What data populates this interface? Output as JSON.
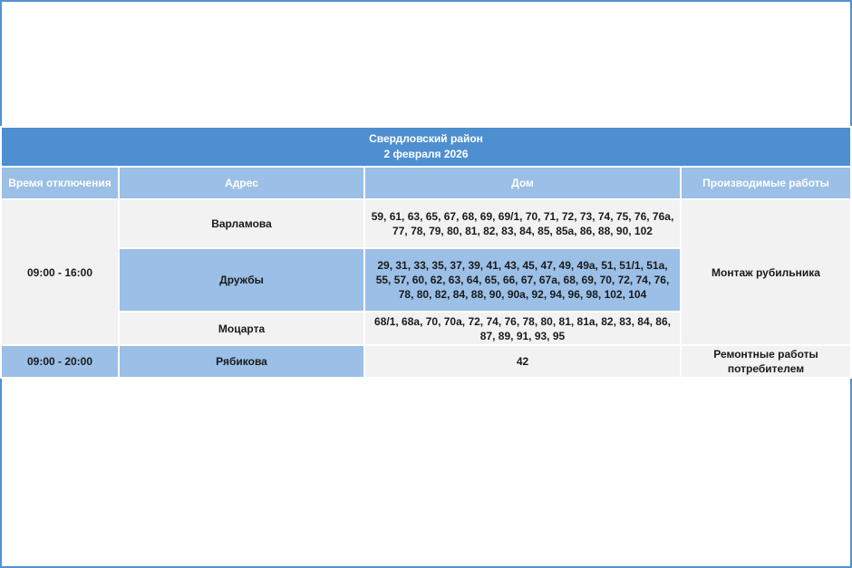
{
  "table": {
    "title": "Свердловский район",
    "date": "2 февраля 2026",
    "headers": {
      "time": "Время отключения",
      "address": "Адрес",
      "house": "Дом",
      "work": "Производимые работы"
    },
    "group1": {
      "time": "09:00 - 16:00",
      "work": "Монтаж рубильника",
      "rows": [
        {
          "address": "Варламова",
          "houses": "59, 61, 63, 65, 67, 68, 69, 69/1, 70, 71, 72, 73, 74, 75, 76, 76а, 77, 78, 79, 80, 81, 82, 83, 84, 85, 85а, 86, 88, 90, 102"
        },
        {
          "address": "Дружбы",
          "houses": "29, 31, 33, 35, 37, 39, 41, 43, 45, 47, 49, 49а, 51, 51/1, 51а, 55, 57, 60, 62, 63, 64, 65, 66, 67, 67а, 68, 69, 70, 72, 74, 76, 78, 80, 82, 84, 88, 90, 90а, 92, 94, 96, 98, 102, 104"
        },
        {
          "address": "Моцарта",
          "houses": "68/1, 68а, 70, 70а, 72, 74, 76, 78, 80, 81, 81а, 82, 83, 84, 86, 87, 89, 91, 93, 95"
        }
      ]
    },
    "group2": {
      "time": "09:00 - 20:00",
      "address": "Рябикова",
      "houses": "42",
      "work": "Ремонтные работы потребителем"
    }
  }
}
